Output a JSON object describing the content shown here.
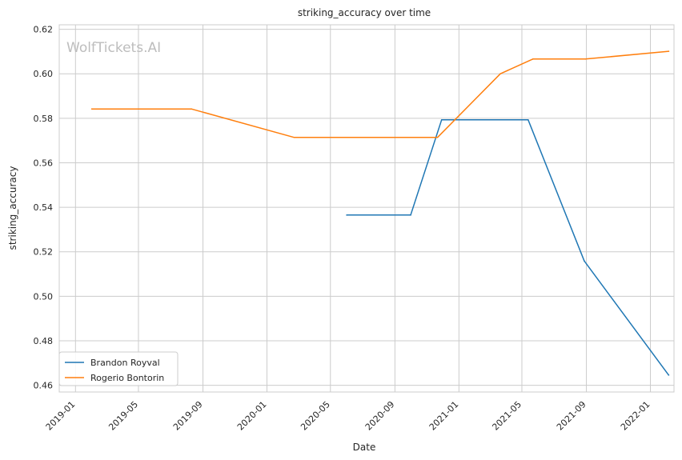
{
  "chart_data": {
    "type": "line",
    "title": "striking_accuracy over time",
    "xlabel": "Date",
    "ylabel": "striking_accuracy",
    "watermark": "WolfTickets.AI",
    "x_type": "date",
    "xlim": [
      "2018-12-01",
      "2022-02-15"
    ],
    "ylim": [
      0.457,
      0.622
    ],
    "x_ticks": [
      "2019-01",
      "2019-05",
      "2019-09",
      "2020-01",
      "2020-05",
      "2020-09",
      "2021-01",
      "2021-05",
      "2021-09",
      "2022-01"
    ],
    "y_ticks": [
      "0.46",
      "0.48",
      "0.50",
      "0.52",
      "0.54",
      "0.56",
      "0.58",
      "0.60",
      "0.62"
    ],
    "grid": true,
    "legend_position": "bottom-left",
    "series": [
      {
        "name": "Brandon Royval",
        "color": "#1f77b4",
        "points": [
          {
            "x": "2020-06-01",
            "y": 0.5365
          },
          {
            "x": "2020-10-01",
            "y": 0.5365
          },
          {
            "x": "2020-11-29",
            "y": 0.5793
          },
          {
            "x": "2021-05-13",
            "y": 0.5793
          },
          {
            "x": "2021-08-28",
            "y": 0.5159
          },
          {
            "x": "2022-02-05",
            "y": 0.4646
          }
        ]
      },
      {
        "name": "Rogerio Bontorin",
        "color": "#ff7f0e",
        "points": [
          {
            "x": "2019-02-01",
            "y": 0.5842
          },
          {
            "x": "2019-08-10",
            "y": 0.5842
          },
          {
            "x": "2020-02-22",
            "y": 0.5714
          },
          {
            "x": "2020-11-21",
            "y": 0.5714
          },
          {
            "x": "2021-03-21",
            "y": 0.6
          },
          {
            "x": "2021-05-22",
            "y": 0.6066
          },
          {
            "x": "2021-08-30",
            "y": 0.6066
          },
          {
            "x": "2022-02-05",
            "y": 0.6101
          }
        ]
      }
    ]
  }
}
